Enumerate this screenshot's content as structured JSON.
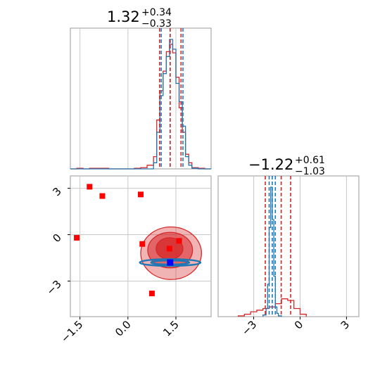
{
  "colors": {
    "red": "#d62728",
    "blue": "#1f77b4",
    "grid": "#c8c8c8",
    "frame": "#999999",
    "marker_red": "#ff0000",
    "marker_blue": "#0000ff"
  },
  "chart_data": [
    {
      "type": "histogram",
      "panel": "top-left",
      "title": {
        "main": "1.32",
        "sup": "+0.34",
        "sub": "−0.33"
      },
      "xlim": [
        -1.8,
        2.6
      ],
      "vlines": {
        "red": [
          0.99,
          1.32,
          1.66
        ],
        "blue": [
          1.04,
          1.32,
          1.72
        ]
      },
      "series": [
        {
          "name": "",
          "color": "red",
          "bin_edges": [
            -1.8,
            -1.6,
            -1.4,
            -1.2,
            -1.0,
            -0.8,
            -0.6,
            -0.4,
            -0.2,
            0.0,
            0.2,
            0.4,
            0.6,
            0.8,
            0.9,
            1.0,
            1.1,
            1.2,
            1.3,
            1.4,
            1.5,
            1.6,
            1.7,
            1.8,
            1.9,
            2.0,
            2.2,
            2.4,
            2.6
          ],
          "counts": [
            0,
            0.5,
            0,
            0.5,
            0.5,
            0.5,
            0,
            0,
            0,
            0,
            0.5,
            1,
            3,
            10,
            40,
            64,
            80,
            96,
            102,
            95,
            75,
            50,
            30,
            12,
            5,
            1,
            0.5,
            0
          ]
        },
        {
          "name": "",
          "color": "blue",
          "bin_edges": [
            -1.8,
            -1.6,
            -1.4,
            -1.2,
            -1.0,
            -0.8,
            -0.6,
            -0.4,
            -0.2,
            0.0,
            0.2,
            0.4,
            0.6,
            0.8,
            0.9,
            1.0,
            1.1,
            1.2,
            1.3,
            1.4,
            1.5,
            1.6,
            1.7,
            1.8,
            1.9,
            2.0,
            2.2,
            2.4,
            2.6
          ],
          "counts": [
            0,
            0,
            0,
            0,
            0,
            0,
            0,
            0,
            0,
            0,
            0,
            0,
            0,
            5,
            30,
            60,
            78,
            92,
            106,
            98,
            70,
            55,
            35,
            10,
            3,
            0.5,
            0,
            0
          ]
        }
      ]
    },
    {
      "type": "scatter",
      "panel": "bottom-left",
      "xlim": [
        -1.8,
        2.6
      ],
      "ylim": [
        -5.3,
        3.8
      ],
      "x_ticks": [
        "−1.5",
        "0.0",
        "1.5"
      ],
      "x_tick_values": [
        -1.5,
        0.0,
        1.5
      ],
      "y_ticks": [
        "3",
        "0",
        "−3"
      ],
      "y_tick_values": [
        3,
        0,
        -3
      ],
      "red_markers": [
        {
          "x": -1.2,
          "y": 3.1
        },
        {
          "x": -0.8,
          "y": 2.5
        },
        {
          "x": 0.4,
          "y": 2.6
        },
        {
          "x": -1.6,
          "y": -0.2
        },
        {
          "x": 0.45,
          "y": -0.6
        },
        {
          "x": 1.3,
          "y": -0.9
        },
        {
          "x": 1.6,
          "y": -0.4
        },
        {
          "x": 0.75,
          "y": -3.8
        }
      ],
      "blue_marker": {
        "x": 1.32,
        "y": -1.8
      },
      "red_contours": [
        {
          "cx": 1.35,
          "cy": -1.2,
          "rx": 0.95,
          "ry": 1.7,
          "fill_opacity": 0.35
        },
        {
          "cx": 1.32,
          "cy": -1.0,
          "rx": 0.7,
          "ry": 1.15,
          "fill_opacity": 0.55
        },
        {
          "cx": 1.3,
          "cy": -0.9,
          "rx": 0.42,
          "ry": 0.7,
          "fill_opacity": 0.75
        }
      ],
      "blue_contours": [
        {
          "cx": 1.32,
          "cy": -1.8,
          "rx": 0.95,
          "ry": 0.22
        },
        {
          "cx": 1.32,
          "cy": -1.8,
          "rx": 0.6,
          "ry": 0.13
        }
      ]
    },
    {
      "type": "histogram",
      "panel": "bottom-right",
      "title": {
        "main": "−1.22",
        "sup": "+0.61",
        "sub": "−1.03"
      },
      "xlim": [
        -5.3,
        3.8
      ],
      "x_ticks": [
        "−3",
        "0",
        "3"
      ],
      "x_tick_values": [
        -3,
        0,
        3
      ],
      "vlines": {
        "red": [
          -2.25,
          -1.22,
          -0.61
        ],
        "blue": [
          -2.0,
          -1.8,
          -1.6
        ]
      },
      "series": [
        {
          "name": "",
          "color": "red",
          "bin_edges": [
            -4.0,
            -3.6,
            -3.2,
            -2.8,
            -2.4,
            -2.0,
            -1.6,
            -1.2,
            -0.8,
            -0.4,
            0.0,
            0.4
          ],
          "counts": [
            1,
            3,
            6,
            8,
            10,
            12,
            16,
            22,
            20,
            10,
            3
          ]
        },
        {
          "name": "",
          "color": "blue",
          "bin_edges": [
            -2.4,
            -2.2,
            -2.1,
            -2.0,
            -1.9,
            -1.8,
            -1.7,
            -1.6,
            -1.5,
            -1.4,
            -1.2
          ],
          "counts": [
            2,
            10,
            40,
            110,
            160,
            120,
            50,
            12,
            4,
            1
          ]
        }
      ]
    }
  ]
}
